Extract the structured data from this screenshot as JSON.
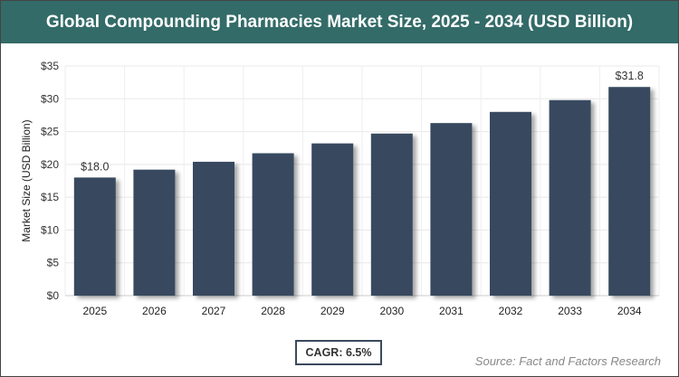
{
  "title": "Global Compounding Pharmacies Market Size, 2025 - 2034 (USD Billion)",
  "cagr": "CAGR: 6.5%",
  "source": "Source: Fact and Factors Research",
  "chart_data": {
    "type": "bar",
    "title": "Global Compounding Pharmacies Market Size, 2025 - 2034 (USD Billion)",
    "xlabel": "",
    "ylabel": "Market Size (USD Billion)",
    "categories": [
      "2025",
      "2026",
      "2027",
      "2028",
      "2029",
      "2030",
      "2031",
      "2032",
      "2033",
      "2034"
    ],
    "values": [
      18.0,
      19.2,
      20.4,
      21.7,
      23.2,
      24.7,
      26.3,
      28.0,
      29.8,
      31.8
    ],
    "data_labels": {
      "0": "$18.0",
      "9": "$31.8"
    },
    "ylim": [
      0,
      35
    ],
    "yticks": [
      0,
      5,
      10,
      15,
      20,
      25,
      30,
      35
    ],
    "ytick_labels": [
      "$0",
      "$5",
      "$10",
      "$15",
      "$20",
      "$25",
      "$30",
      "$35"
    ],
    "grid": true,
    "bar_color": "#374a5e",
    "header_color": "#336b68"
  }
}
